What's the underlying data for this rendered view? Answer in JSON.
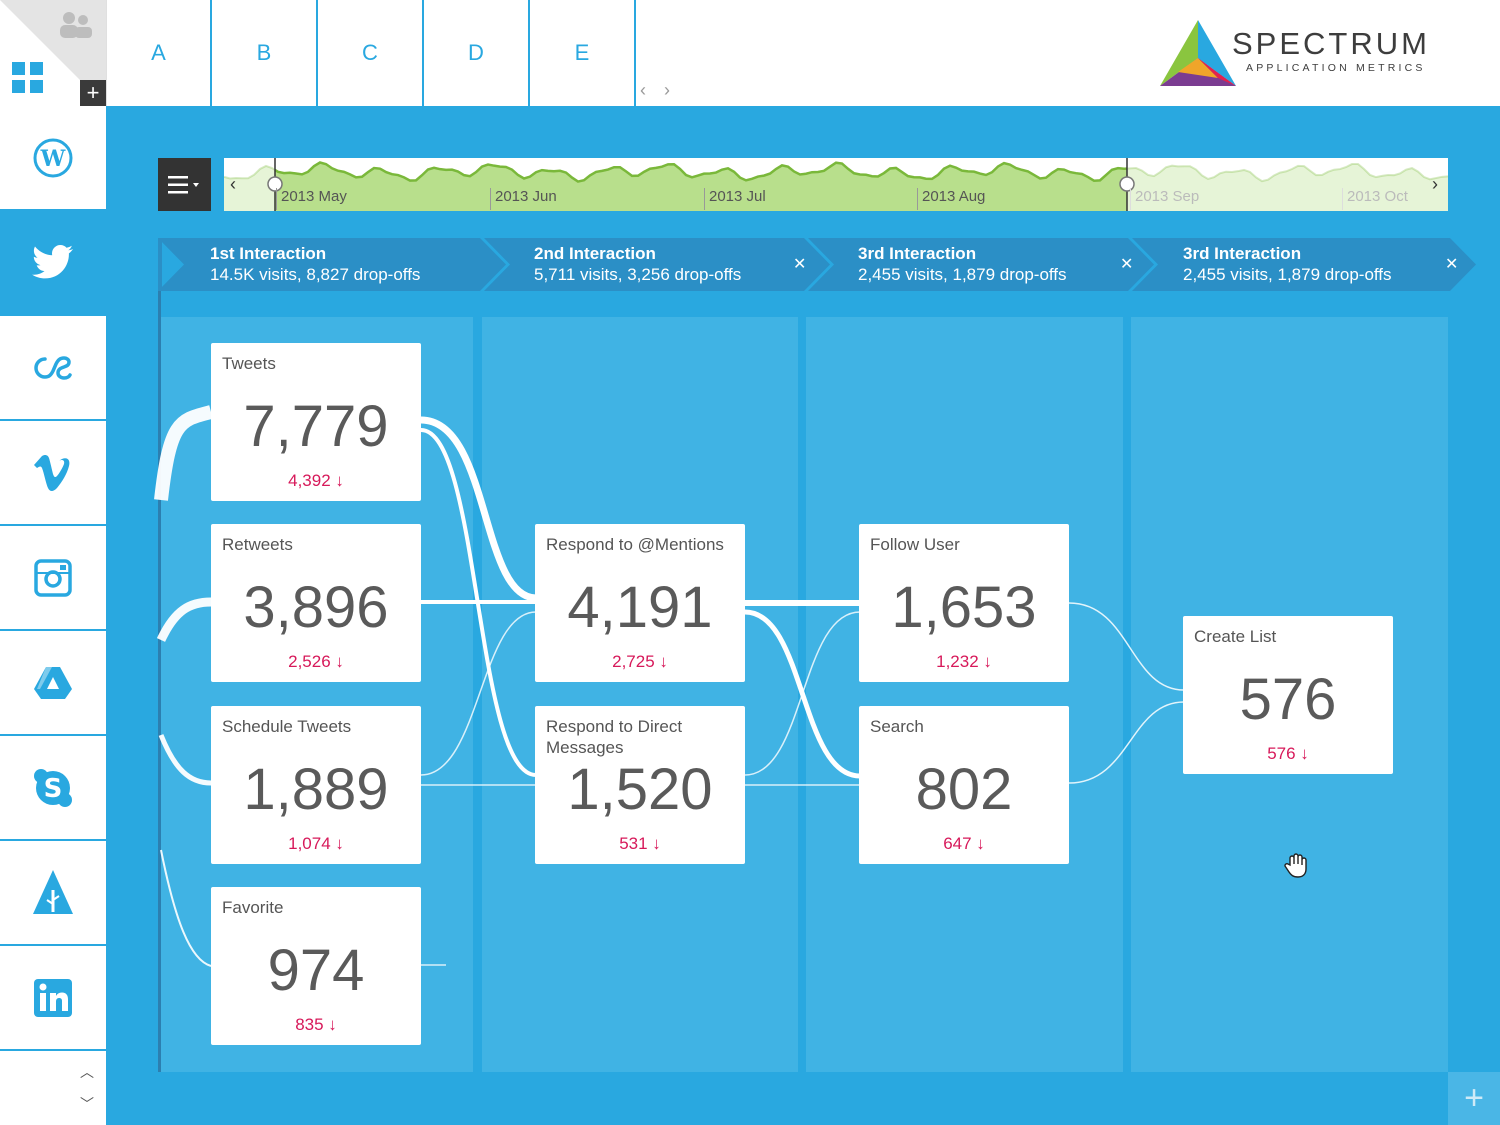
{
  "app": {
    "brand_title": "SPECTRUM",
    "brand_subtitle": "APPLICATION METRICS",
    "tabs": [
      "A",
      "B",
      "C",
      "D",
      "E"
    ],
    "tab_prev": "‹",
    "tab_next": "›",
    "corner_plus": "+",
    "add_label": "+"
  },
  "sidebar": {
    "items": [
      "wordpress-icon",
      "twitter-icon",
      "lastfm-icon",
      "vimeo-icon",
      "instagram-icon",
      "google-drive-icon",
      "skype-icon",
      "forrst-icon",
      "linkedin-icon"
    ],
    "active": "twitter-icon",
    "scroll_up": "︿",
    "scroll_down": "﹀"
  },
  "timeline": {
    "labels": [
      "2013 May",
      "2013 Jun",
      "2013 Jul",
      "2013 Aug",
      "2013 Sep",
      "2013 Oct"
    ],
    "prev": "‹",
    "next": "›"
  },
  "steps": [
    {
      "title": "1st Interaction",
      "stats": "14.5K visits, 8,827 drop-offs",
      "closable": false
    },
    {
      "title": "2nd Interaction",
      "stats": "5,711 visits, 3,256 drop-offs",
      "closable": true
    },
    {
      "title": "3rd Interaction",
      "stats": "2,455 visits, 1,879 drop-offs",
      "closable": true
    },
    {
      "title": "3rd Interaction",
      "stats": "2,455 visits, 1,879 drop-offs",
      "closable": true
    }
  ],
  "close_glyph": "✕",
  "cards": {
    "tweets": {
      "label": "Tweets",
      "value": "7,779",
      "drop": "4,392 ↓"
    },
    "retweets": {
      "label": "Retweets",
      "value": "3,896",
      "drop": "2,526 ↓"
    },
    "schedule": {
      "label": "Schedule Tweets",
      "value": "1,889",
      "drop": "1,074 ↓"
    },
    "favorite": {
      "label": "Favorite",
      "value": "974",
      "drop": "835 ↓"
    },
    "mentions": {
      "label": "Respond to @Mentions",
      "value": "4,191",
      "drop": "2,725 ↓"
    },
    "dm": {
      "label": "Respond to Direct Messages",
      "value": "1,520",
      "drop": "531 ↓"
    },
    "follow": {
      "label": "Follow User",
      "value": "1,653",
      "drop": "1,232 ↓"
    },
    "search": {
      "label": "Search",
      "value": "802",
      "drop": "647 ↓"
    },
    "createlist": {
      "label": "Create List",
      "value": "576",
      "drop": "576 ↓"
    }
  },
  "colors": {
    "accent": "#29a8e0",
    "column": "#40b3e4",
    "step_bar": "#2b8fc6",
    "drop": "#d7195a",
    "timeline_fill": "#b8df8c",
    "timeline_line": "#7ab83a"
  }
}
